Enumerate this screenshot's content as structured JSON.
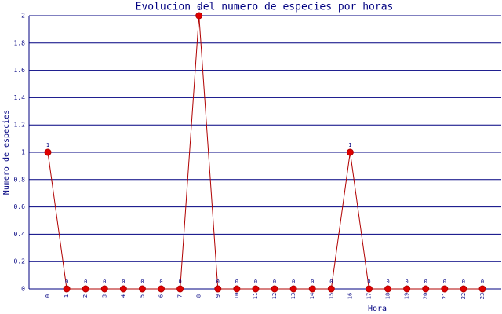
{
  "chart_data": {
    "type": "line",
    "title": "Evolucion del numero de especies por horas",
    "xlabel": "Hora",
    "ylabel": "Numero de especies",
    "categories": [
      "0",
      "1",
      "2",
      "3",
      "4",
      "5",
      "6",
      "7",
      "8",
      "9",
      "10",
      "11",
      "12",
      "13",
      "14",
      "15",
      "16",
      "17",
      "18",
      "19",
      "20",
      "21",
      "22",
      "23"
    ],
    "series": [
      {
        "color": "#b00000",
        "values": [
          1,
          0,
          0,
          0,
          0,
          0,
          0,
          0,
          2,
          0,
          0,
          0,
          0,
          0,
          0,
          0,
          1,
          0,
          0,
          0,
          0,
          0,
          0,
          0
        ]
      }
    ],
    "ylim": [
      0,
      2
    ],
    "yticks": [
      0,
      0.2,
      0.4,
      0.6,
      0.8,
      1,
      1.2,
      1.4,
      1.6,
      1.8,
      2
    ],
    "grid": true
  }
}
